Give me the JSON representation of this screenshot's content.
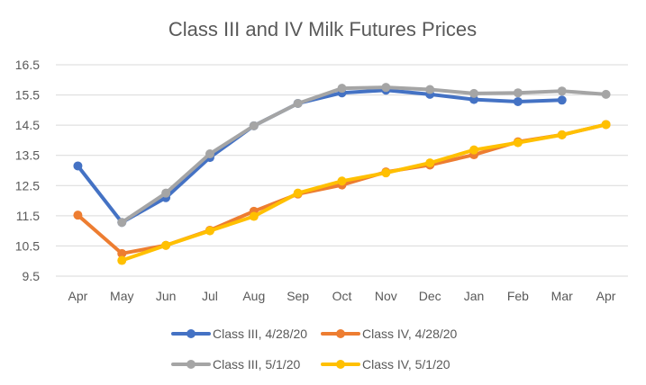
{
  "chart_data": {
    "type": "line",
    "title": "Class III and IV Milk Futures Prices",
    "xlabel": "",
    "ylabel": "",
    "categories": [
      "Apr",
      "May",
      "Jun",
      "Jul",
      "Aug",
      "Sep",
      "Oct",
      "Nov",
      "Dec",
      "Jan",
      "Feb",
      "Mar",
      "Apr"
    ],
    "y_ticks": [
      "9.5",
      "10.5",
      "11.5",
      "12.5",
      "13.5",
      "14.5",
      "15.5",
      "16.5"
    ],
    "ylim": [
      9.5,
      16.5
    ],
    "grid": true,
    "legend_position": "bottom",
    "series": [
      {
        "name": "Class III, 4/28/20",
        "color": "#4472C4",
        "values": [
          13.15,
          11.28,
          12.1,
          13.43,
          14.48,
          15.22,
          15.57,
          15.66,
          15.52,
          15.35,
          15.28,
          15.33,
          null
        ]
      },
      {
        "name": "Class IV, 4/28/20",
        "color": "#ED7D31",
        "values": [
          11.52,
          10.25,
          10.52,
          11.02,
          11.65,
          12.22,
          12.52,
          12.95,
          13.18,
          13.52,
          13.95,
          14.18,
          14.52
        ]
      },
      {
        "name": "Class III, 5/1/20",
        "color": "#A5A5A5",
        "values": [
          null,
          11.28,
          12.25,
          13.55,
          14.48,
          15.22,
          15.72,
          15.75,
          15.68,
          15.55,
          15.57,
          15.63,
          15.52
        ]
      },
      {
        "name": "Class IV, 5/1/20",
        "color": "#FFC000",
        "values": [
          null,
          10.02,
          10.52,
          11.0,
          11.48,
          12.25,
          12.65,
          12.92,
          13.25,
          13.68,
          13.92,
          14.18,
          14.52
        ]
      }
    ]
  }
}
